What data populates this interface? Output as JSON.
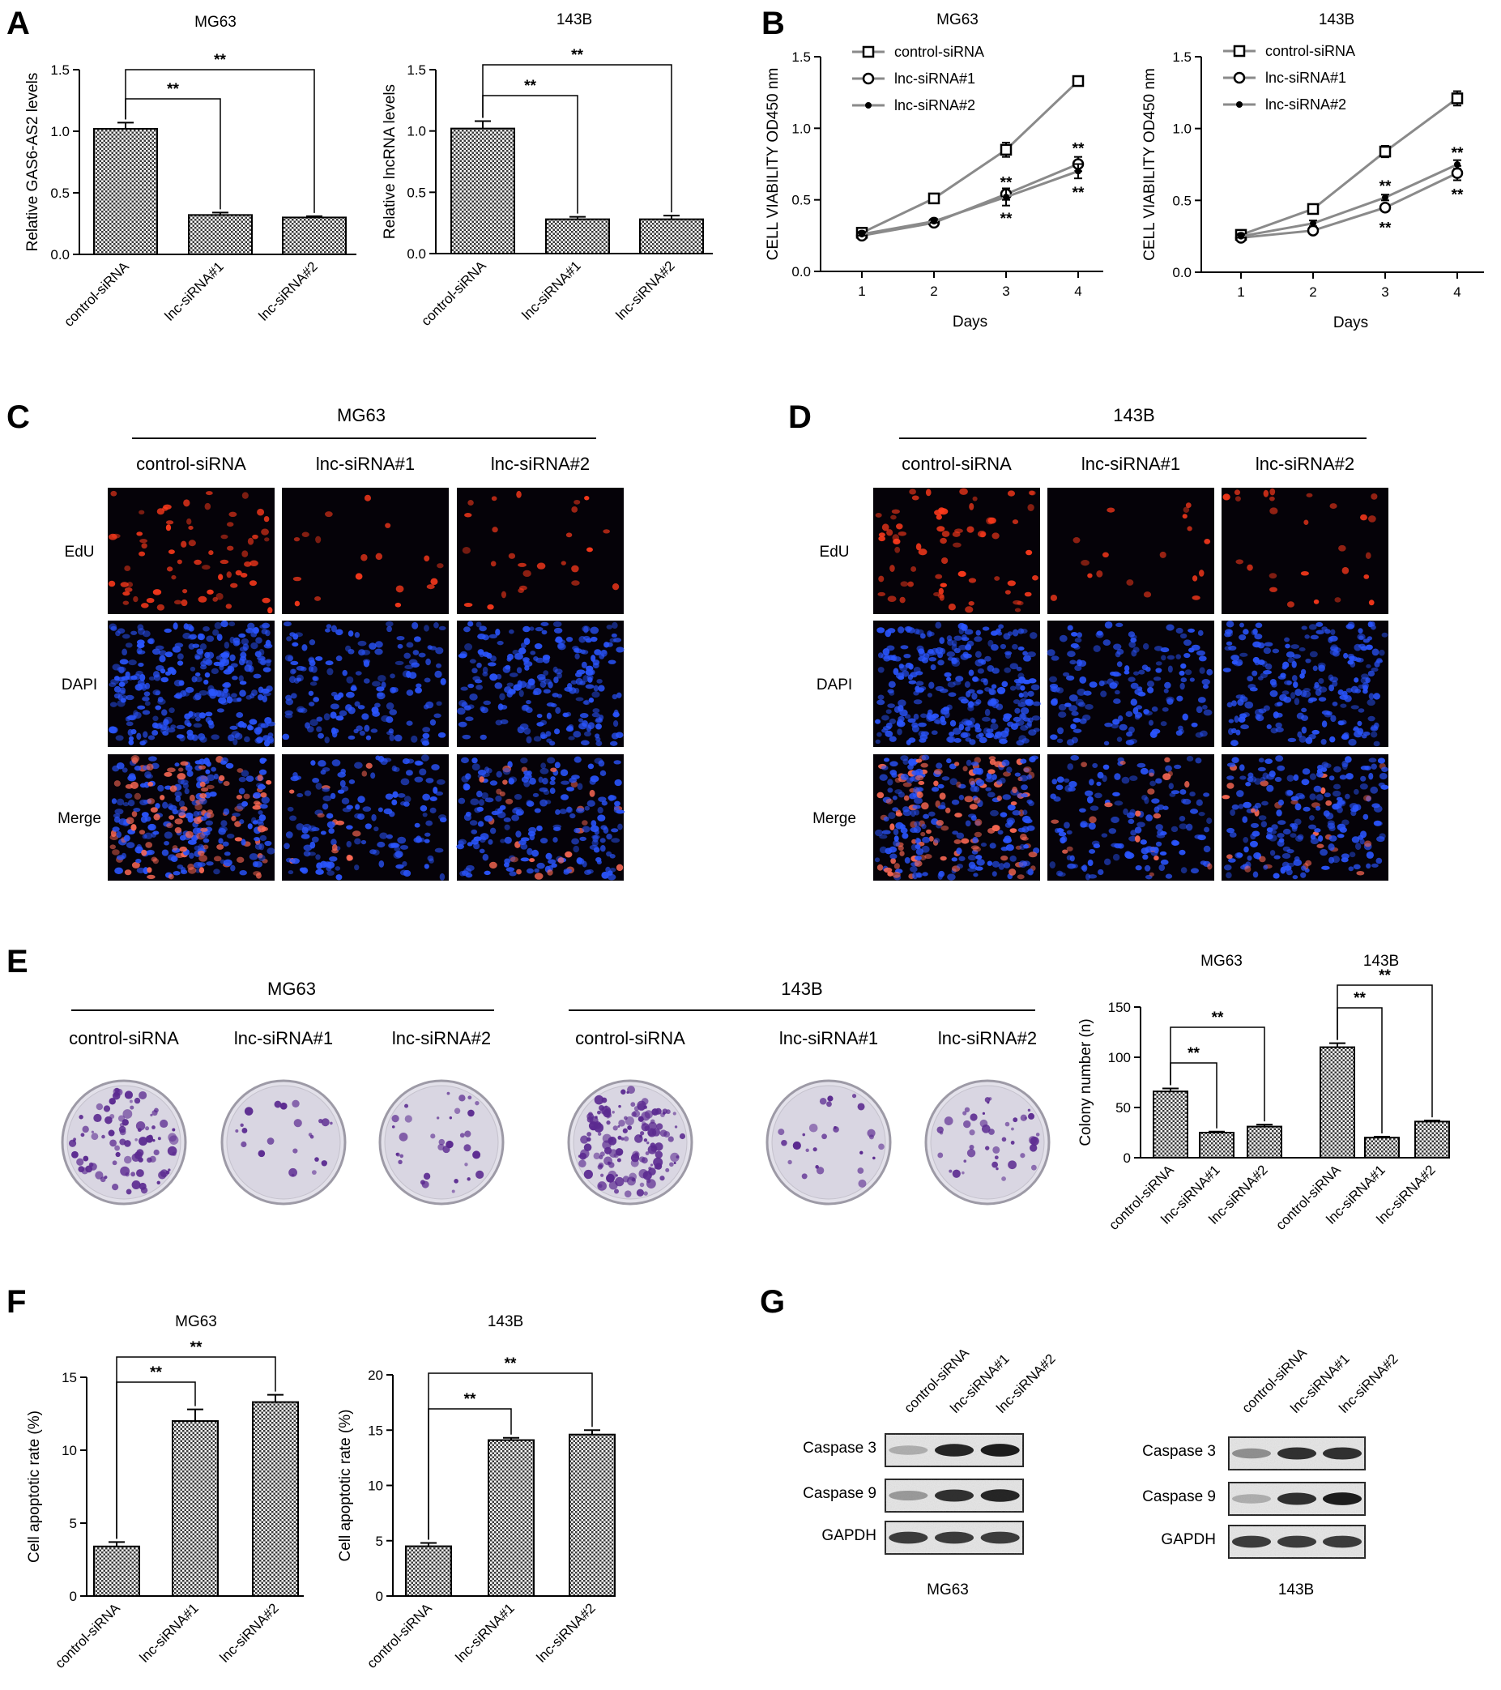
{
  "panels": {
    "A": "A",
    "B": "B",
    "C": "C",
    "D": "D",
    "E": "E",
    "F": "F",
    "G": "G"
  },
  "groups": [
    "control-siRNA",
    "lnc-siRNA#1",
    "lnc-siRNA#2"
  ],
  "cell_lines": [
    "MG63",
    "143B"
  ],
  "microscopy": {
    "rows": [
      "EdU",
      "DAPI",
      "Merge"
    ],
    "C_title": "MG63",
    "D_title": "143B"
  },
  "colony": {
    "left_title": "MG63",
    "right_title": "143B"
  },
  "western": {
    "rows": [
      "Caspase 3",
      "Caspase 9",
      "GAPDH"
    ],
    "left_title": "MG63",
    "right_title": "143B"
  },
  "significance": "**",
  "colors": {
    "bar_fill": "#9a9a9a",
    "axis": "#000000",
    "line": "#8a8a8a",
    "edu": "#ff3a1c",
    "dapi": "#2a55ff",
    "crystal_violet": "#5b2a90"
  },
  "chart_data": [
    {
      "id": "A1",
      "type": "bar",
      "title": "MG63",
      "ylabel": "Relative GAS6-AS2 levels",
      "xlabel": "",
      "categories": [
        "control-siRNA",
        "lnc-siRNA#1",
        "lnc-siRNA#2"
      ],
      "values": [
        1.02,
        0.32,
        0.3
      ],
      "errors": [
        0.05,
        0.02,
        0.01
      ],
      "ylim": [
        0,
        1.5
      ],
      "yticks": [
        "0.0",
        "0.5",
        "1.0",
        "1.5"
      ],
      "sig": [
        {
          "from": 0,
          "to": 1,
          "label": "**"
        },
        {
          "from": 0,
          "to": 2,
          "label": "**"
        }
      ]
    },
    {
      "id": "A2",
      "type": "bar",
      "title": "143B",
      "ylabel": "Relative lncRNA levels",
      "xlabel": "",
      "categories": [
        "control-siRNA",
        "lnc-siRNA#1",
        "lnc-siRNA#2"
      ],
      "values": [
        1.02,
        0.28,
        0.28
      ],
      "errors": [
        0.06,
        0.02,
        0.03
      ],
      "ylim": [
        0,
        1.5
      ],
      "yticks": [
        "0.0",
        "0.5",
        "1.0",
        "1.5"
      ],
      "sig": [
        {
          "from": 0,
          "to": 1,
          "label": "**"
        },
        {
          "from": 0,
          "to": 2,
          "label": "**"
        }
      ]
    },
    {
      "id": "B1",
      "type": "line",
      "title": "MG63",
      "ylabel": "CELL VIABILITY OD450 nm",
      "xlabel": "Days",
      "x": [
        1,
        2,
        3,
        4
      ],
      "xticks": [
        "1",
        "2",
        "3",
        "4"
      ],
      "ylim": [
        0,
        1.5
      ],
      "yticks": [
        "0.0",
        "0.5",
        "1.0",
        "1.5"
      ],
      "series": [
        {
          "name": "control-siRNA",
          "marker": "square",
          "values": [
            0.27,
            0.51,
            0.85,
            1.33
          ],
          "errors": [
            0.01,
            0.02,
            0.05,
            0.03
          ]
        },
        {
          "name": "lnc-siRNA#1",
          "marker": "circle",
          "values": [
            0.25,
            0.34,
            0.54,
            0.75
          ],
          "errors": [
            0.01,
            0.01,
            0.04,
            0.05
          ]
        },
        {
          "name": "lnc-siRNA#2",
          "marker": "dot",
          "values": [
            0.26,
            0.35,
            0.52,
            0.7
          ],
          "errors": [
            0.01,
            0.01,
            0.06,
            0.05
          ]
        }
      ],
      "annotations": [
        {
          "x": 3,
          "y": 0.63,
          "label": "**"
        },
        {
          "x": 3,
          "y": 0.38,
          "label": "**"
        },
        {
          "x": 4,
          "y": 0.87,
          "label": "**"
        },
        {
          "x": 4,
          "y": 0.56,
          "label": "**"
        }
      ]
    },
    {
      "id": "B2",
      "type": "line",
      "title": "143B",
      "ylabel": "CELL VIABILITY OD450 nm",
      "xlabel": "Days",
      "x": [
        1,
        2,
        3,
        4
      ],
      "xticks": [
        "1",
        "2",
        "3",
        "4"
      ],
      "ylim": [
        0,
        1.5
      ],
      "yticks": [
        "0.0",
        "0.5",
        "1.0",
        "1.5"
      ],
      "series": [
        {
          "name": "control-siRNA",
          "marker": "square",
          "values": [
            0.26,
            0.44,
            0.84,
            1.21
          ],
          "errors": [
            0.01,
            0.03,
            0.04,
            0.05
          ]
        },
        {
          "name": "lnc-siRNA#1",
          "marker": "circle",
          "values": [
            0.24,
            0.29,
            0.45,
            0.69
          ],
          "errors": [
            0.01,
            0.01,
            0.02,
            0.05
          ]
        },
        {
          "name": "lnc-siRNA#2",
          "marker": "dot",
          "values": [
            0.25,
            0.34,
            0.52,
            0.75
          ],
          "errors": [
            0.01,
            0.02,
            0.02,
            0.03
          ]
        }
      ],
      "annotations": [
        {
          "x": 3,
          "y": 0.61,
          "label": "**"
        },
        {
          "x": 3,
          "y": 0.32,
          "label": "**"
        },
        {
          "x": 4,
          "y": 0.84,
          "label": "**"
        },
        {
          "x": 4,
          "y": 0.55,
          "label": "**"
        }
      ]
    },
    {
      "id": "E",
      "type": "bar",
      "title": "",
      "ylabel": "Colony number (n)",
      "xlabel": "",
      "group_titles": [
        "MG63",
        "143B"
      ],
      "categories": [
        "control-siRNA",
        "lnc-siRNA#1",
        "lnc-siRNA#2",
        "control-siRNA",
        "lnc-siRNA#1",
        "lnc-siRNA#2"
      ],
      "values": [
        66,
        25,
        31,
        110,
        20,
        36
      ],
      "errors": [
        3,
        1,
        2,
        4,
        1,
        1
      ],
      "ylim": [
        0,
        150
      ],
      "yticks": [
        "0",
        "50",
        "100",
        "150"
      ],
      "sig": [
        {
          "from": 0,
          "to": 1,
          "label": "**"
        },
        {
          "from": 0,
          "to": 2,
          "label": "**"
        },
        {
          "from": 3,
          "to": 4,
          "label": "**"
        },
        {
          "from": 3,
          "to": 5,
          "label": "**"
        }
      ]
    },
    {
      "id": "F1",
      "type": "bar",
      "title": "MG63",
      "ylabel": "Cell apoptotic rate (%)",
      "xlabel": "",
      "categories": [
        "control-siRNA",
        "lnc-siRNA#1",
        "lnc-siRNA#2"
      ],
      "values": [
        3.4,
        12.0,
        13.3
      ],
      "errors": [
        0.3,
        0.8,
        0.5
      ],
      "ylim": [
        0,
        15
      ],
      "yticks": [
        "0",
        "5",
        "10",
        "15"
      ],
      "sig": [
        {
          "from": 0,
          "to": 1,
          "label": "**"
        },
        {
          "from": 0,
          "to": 2,
          "label": "**"
        }
      ]
    },
    {
      "id": "F2",
      "type": "bar",
      "title": "143B",
      "ylabel": "Cell apoptotic rate (%)",
      "xlabel": "",
      "categories": [
        "control-siRNA",
        "lnc-siRNA#1",
        "lnc-siRNA#2"
      ],
      "values": [
        4.5,
        14.1,
        14.6
      ],
      "errors": [
        0.3,
        0.2,
        0.4
      ],
      "ylim": [
        0,
        20
      ],
      "yticks": [
        "0",
        "5",
        "10",
        "15",
        "20"
      ],
      "sig": [
        {
          "from": 0,
          "to": 1,
          "label": "**"
        },
        {
          "from": 0,
          "to": 2,
          "label": "**"
        }
      ]
    }
  ]
}
